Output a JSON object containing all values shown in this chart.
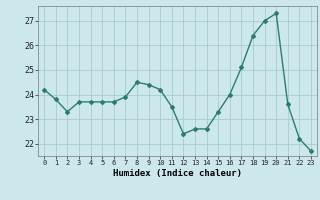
{
  "x": [
    0,
    1,
    2,
    3,
    4,
    5,
    6,
    7,
    8,
    9,
    10,
    11,
    12,
    13,
    14,
    15,
    16,
    17,
    18,
    19,
    20,
    21,
    22,
    23
  ],
  "y": [
    24.2,
    23.8,
    23.3,
    23.7,
    23.7,
    23.7,
    23.7,
    23.9,
    24.5,
    24.4,
    24.2,
    23.5,
    22.4,
    22.6,
    22.6,
    23.3,
    24.0,
    25.1,
    26.4,
    27.0,
    27.3,
    23.6,
    22.2,
    21.7
  ],
  "xlabel": "Humidex (Indice chaleur)",
  "ylim": [
    21.5,
    27.6
  ],
  "xlim": [
    -0.5,
    23.5
  ],
  "yticks": [
    22,
    23,
    24,
    25,
    26,
    27
  ],
  "xticks": [
    0,
    1,
    2,
    3,
    4,
    5,
    6,
    7,
    8,
    9,
    10,
    11,
    12,
    13,
    14,
    15,
    16,
    17,
    18,
    19,
    20,
    21,
    22,
    23
  ],
  "line_color": "#2d7d6e",
  "marker": "D",
  "marker_size": 2.0,
  "bg_color": "#cde8ec",
  "grid_color": "#aacccc",
  "line_width": 1.0
}
